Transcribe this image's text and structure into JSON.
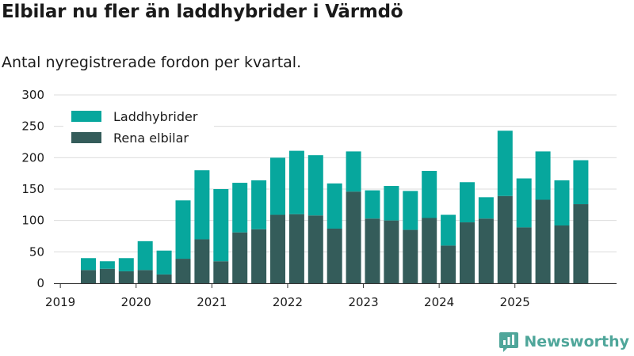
{
  "title": "Elbilar nu fler än laddhybrider i Värmdö",
  "subtitle": "Antal nyregistrerade fordon per kvartal.",
  "brand": "Newsworthy",
  "colors": {
    "laddhybrider": "#07a79d",
    "rena_elbilar": "#345c5a",
    "grid": "#dcdcdc",
    "axis": "#333333",
    "brand": "#4fa69a"
  },
  "chart_data": {
    "type": "bar",
    "stacked": true,
    "title": "Elbilar nu fler än laddhybrider i Värmdö",
    "subtitle": "Antal nyregistrerade fordon per kvartal.",
    "xlabel": "",
    "ylabel": "",
    "ylim": [
      0,
      300
    ],
    "yticks": [
      0,
      50,
      100,
      150,
      200,
      250,
      300
    ],
    "xtick_labels": [
      "2019",
      "2020",
      "2021",
      "2022",
      "2023",
      "2024",
      "2025"
    ],
    "categories": [
      "2019 Q2",
      "2019 Q3",
      "2019 Q4",
      "2020 Q1",
      "2020 Q2",
      "2020 Q3",
      "2020 Q4",
      "2021 Q1",
      "2021 Q2",
      "2021 Q3",
      "2021 Q4",
      "2022 Q1",
      "2022 Q2",
      "2022 Q3",
      "2022 Q4",
      "2023 Q1",
      "2023 Q2",
      "2023 Q3",
      "2023 Q4",
      "2024 Q1",
      "2024 Q2",
      "2024 Q3",
      "2024 Q4",
      "2025 Q1",
      "2025 Q2",
      "2025 Q3",
      "2025 Q4"
    ],
    "series": [
      {
        "name": "Rena elbilar",
        "values": [
          21,
          23,
          19,
          21,
          14,
          39,
          70,
          35,
          81,
          86,
          109,
          110,
          108,
          87,
          146,
          103,
          100,
          85,
          104,
          60,
          97,
          103,
          139,
          89,
          133,
          92,
          126
        ]
      },
      {
        "name": "Laddhybrider",
        "values": [
          19,
          12,
          21,
          46,
          38,
          93,
          110,
          115,
          79,
          78,
          91,
          101,
          96,
          72,
          64,
          45,
          55,
          62,
          75,
          49,
          64,
          34,
          104,
          78,
          77,
          72,
          70
        ]
      }
    ],
    "legend": [
      {
        "name": "Laddhybrider"
      },
      {
        "name": "Rena elbilar"
      }
    ],
    "legend_position": "top-left",
    "grid": true
  }
}
